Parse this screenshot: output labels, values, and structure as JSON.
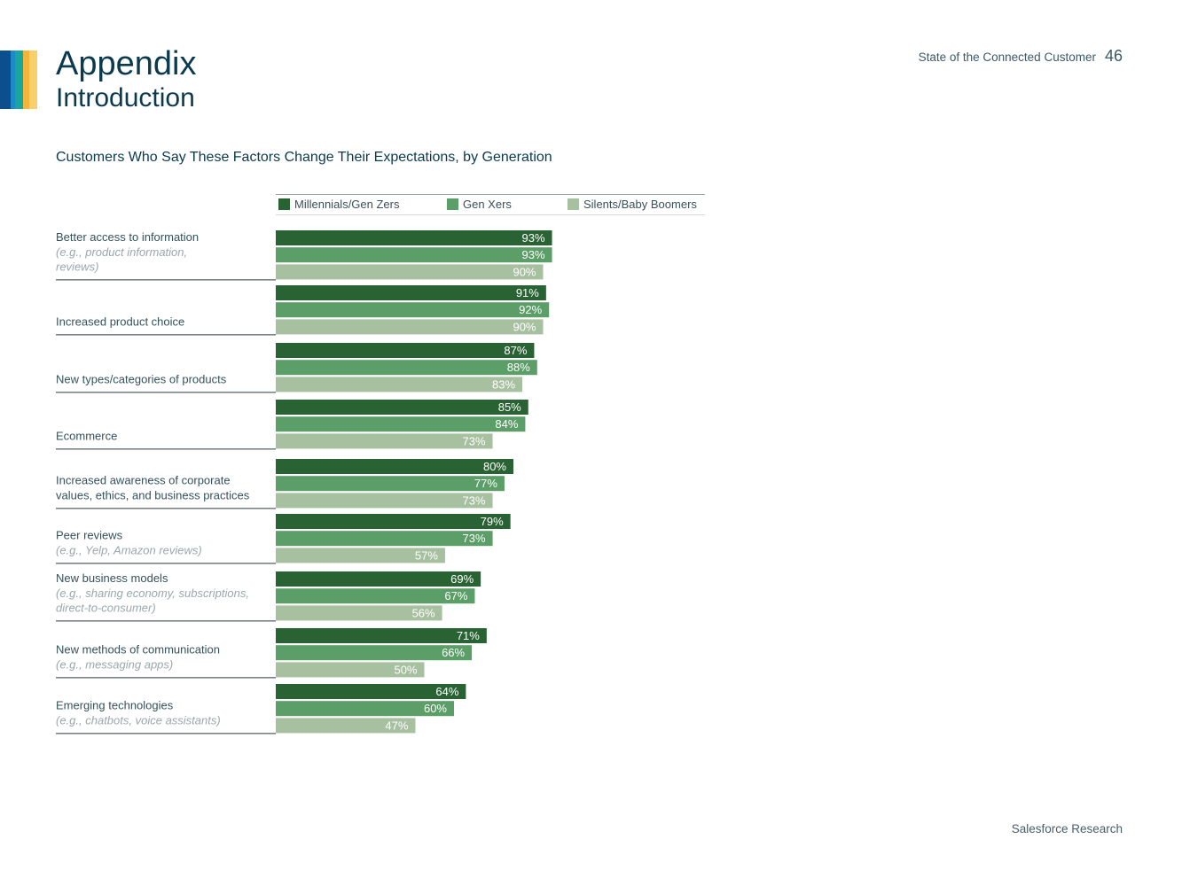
{
  "header": {
    "title": "Appendix",
    "subtitle": "Introduction",
    "report_name": "State of the Connected Customer",
    "page_number": "46"
  },
  "footer": {
    "text": "Salesforce Research"
  },
  "colors": {
    "stripes": [
      "#0b4f8f",
      "#1e88c8",
      "#17a6a0",
      "#f4b63a",
      "#f8cf6a"
    ],
    "millennials": "#2a6333",
    "genx": "#5b9e67",
    "boomers": "#a7c1a0",
    "rule": "#2b3b40"
  },
  "chart_data": {
    "type": "bar",
    "orientation": "horizontal",
    "title": "Customers Who Say These Factors Change Their Expectations, by Generation",
    "xlabel": "",
    "ylabel": "",
    "xlim": [
      0,
      100
    ],
    "value_suffix": "%",
    "legend": [
      "Millennials/Gen Zers",
      "Gen Xers",
      "Silents/Baby Boomers"
    ],
    "categories": [
      {
        "label": "Better access to information",
        "note": [
          "(e.g., product information,",
          "reviews)"
        ]
      },
      {
        "label": "Increased product choice",
        "note": []
      },
      {
        "label": "New types/categories of products",
        "note": []
      },
      {
        "label": "Ecommerce",
        "note": []
      },
      {
        "label": [
          "Increased awareness of corporate",
          "values, ethics, and business practices"
        ],
        "note": []
      },
      {
        "label": "Peer reviews",
        "note": [
          "(e.g., Yelp, Amazon reviews)"
        ]
      },
      {
        "label": "New business models",
        "note": [
          "(e.g., sharing economy, subscriptions,",
          "direct-to-consumer)"
        ]
      },
      {
        "label": "New methods of communication",
        "note": [
          "(e.g., messaging apps)"
        ]
      },
      {
        "label": "Emerging technologies",
        "note": [
          "(e.g., chatbots, voice assistants)"
        ]
      }
    ],
    "series": [
      {
        "name": "Millennials/Gen Zers",
        "values": [
          93,
          91,
          87,
          85,
          80,
          79,
          69,
          71,
          64
        ]
      },
      {
        "name": "Gen Xers",
        "values": [
          93,
          92,
          88,
          84,
          77,
          73,
          67,
          66,
          60
        ]
      },
      {
        "name": "Silents/Baby Boomers",
        "values": [
          90,
          90,
          83,
          73,
          73,
          57,
          56,
          50,
          47
        ]
      }
    ]
  }
}
